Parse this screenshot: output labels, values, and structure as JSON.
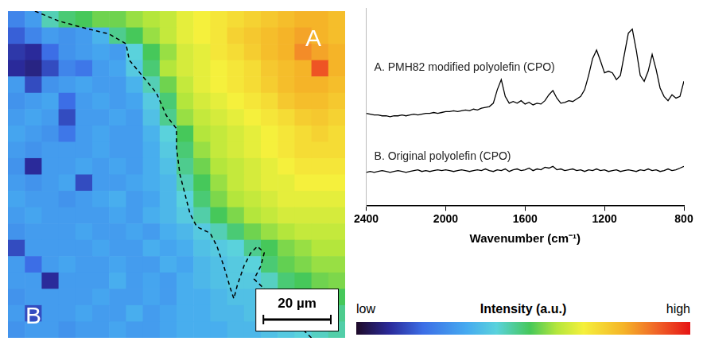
{
  "chart_data": [
    {
      "type": "heatmap",
      "xlim": [
        0,
        100
      ],
      "ylim": [
        100,
        0
      ],
      "tick_labels": false,
      "cells": [
        [
          0.25,
          0.3,
          0.45,
          0.5,
          0.52,
          0.55,
          0.55,
          0.58,
          0.6,
          0.62,
          0.66,
          0.68,
          0.7,
          0.72,
          0.74,
          0.76,
          0.78,
          0.8,
          0.8,
          0.78
        ],
        [
          0.18,
          0.25,
          0.3,
          0.28,
          0.3,
          0.35,
          0.48,
          0.52,
          0.58,
          0.62,
          0.66,
          0.68,
          0.7,
          0.74,
          0.76,
          0.78,
          0.8,
          0.82,
          0.8,
          0.78
        ],
        [
          0.12,
          0.1,
          0.2,
          0.28,
          0.3,
          0.32,
          0.3,
          0.42,
          0.52,
          0.58,
          0.64,
          0.66,
          0.7,
          0.72,
          0.75,
          0.78,
          0.8,
          0.85,
          0.82,
          0.8
        ],
        [
          0.1,
          0.08,
          0.15,
          0.25,
          0.22,
          0.3,
          0.32,
          0.4,
          0.5,
          0.6,
          0.64,
          0.66,
          0.68,
          0.7,
          0.72,
          0.76,
          0.78,
          0.8,
          0.92,
          0.8
        ],
        [
          0.3,
          0.15,
          0.28,
          0.3,
          0.32,
          0.3,
          0.3,
          0.35,
          0.45,
          0.55,
          0.62,
          0.66,
          0.68,
          0.7,
          0.72,
          0.75,
          0.78,
          0.8,
          0.8,
          0.78
        ],
        [
          0.28,
          0.3,
          0.32,
          0.2,
          0.3,
          0.32,
          0.3,
          0.32,
          0.4,
          0.5,
          0.6,
          0.64,
          0.66,
          0.68,
          0.7,
          0.72,
          0.76,
          0.78,
          0.78,
          0.76
        ],
        [
          0.3,
          0.32,
          0.3,
          0.15,
          0.3,
          0.3,
          0.32,
          0.3,
          0.38,
          0.48,
          0.58,
          0.62,
          0.64,
          0.66,
          0.68,
          0.7,
          0.72,
          0.75,
          0.76,
          0.74
        ],
        [
          0.32,
          0.3,
          0.28,
          0.22,
          0.3,
          0.32,
          0.3,
          0.3,
          0.35,
          0.42,
          0.52,
          0.6,
          0.62,
          0.64,
          0.66,
          0.68,
          0.7,
          0.72,
          0.74,
          0.72
        ],
        [
          0.3,
          0.28,
          0.3,
          0.3,
          0.3,
          0.32,
          0.3,
          0.3,
          0.34,
          0.4,
          0.5,
          0.58,
          0.62,
          0.64,
          0.66,
          0.68,
          0.7,
          0.72,
          0.72,
          0.72
        ],
        [
          0.28,
          0.1,
          0.3,
          0.3,
          0.32,
          0.3,
          0.32,
          0.3,
          0.34,
          0.38,
          0.48,
          0.55,
          0.6,
          0.62,
          0.64,
          0.66,
          0.68,
          0.7,
          0.7,
          0.7
        ],
        [
          0.3,
          0.28,
          0.3,
          0.32,
          0.15,
          0.3,
          0.3,
          0.32,
          0.34,
          0.36,
          0.45,
          0.52,
          0.58,
          0.62,
          0.64,
          0.66,
          0.66,
          0.68,
          0.68,
          0.68
        ],
        [
          0.32,
          0.3,
          0.3,
          0.28,
          0.3,
          0.32,
          0.34,
          0.3,
          0.32,
          0.36,
          0.42,
          0.5,
          0.56,
          0.6,
          0.62,
          0.64,
          0.66,
          0.66,
          0.66,
          0.66
        ],
        [
          0.3,
          0.32,
          0.3,
          0.3,
          0.3,
          0.3,
          0.32,
          0.3,
          0.34,
          0.36,
          0.4,
          0.46,
          0.52,
          0.56,
          0.6,
          0.62,
          0.64,
          0.64,
          0.64,
          0.64
        ],
        [
          0.28,
          0.3,
          0.3,
          0.3,
          0.32,
          0.3,
          0.3,
          0.32,
          0.3,
          0.34,
          0.36,
          0.4,
          0.45,
          0.5,
          0.55,
          0.58,
          0.6,
          0.62,
          0.62,
          0.62
        ],
        [
          0.15,
          0.3,
          0.3,
          0.3,
          0.3,
          0.32,
          0.3,
          0.3,
          0.34,
          0.32,
          0.34,
          0.38,
          0.4,
          0.42,
          0.48,
          0.52,
          0.56,
          0.58,
          0.6,
          0.6
        ],
        [
          0.3,
          0.2,
          0.3,
          0.32,
          0.3,
          0.3,
          0.32,
          0.3,
          0.3,
          0.34,
          0.32,
          0.36,
          0.38,
          0.4,
          0.42,
          0.5,
          0.54,
          0.56,
          0.58,
          0.58
        ],
        [
          0.3,
          0.3,
          0.1,
          0.3,
          0.3,
          0.3,
          0.34,
          0.3,
          0.32,
          0.3,
          0.34,
          0.36,
          0.38,
          0.4,
          0.4,
          0.44,
          0.5,
          0.52,
          0.55,
          0.56
        ],
        [
          0.28,
          0.3,
          0.3,
          0.3,
          0.3,
          0.32,
          0.3,
          0.3,
          0.32,
          0.3,
          0.34,
          0.34,
          0.36,
          0.38,
          0.38,
          0.4,
          0.42,
          0.46,
          0.5,
          0.52
        ],
        [
          0.3,
          0.15,
          0.3,
          0.3,
          0.32,
          0.3,
          0.3,
          0.34,
          0.3,
          0.32,
          0.34,
          0.34,
          0.36,
          0.36,
          0.38,
          0.38,
          0.4,
          0.44,
          0.46,
          0.48
        ],
        [
          0.28,
          0.3,
          0.3,
          0.28,
          0.3,
          0.3,
          0.32,
          0.3,
          0.3,
          0.32,
          0.34,
          0.34,
          0.34,
          0.36,
          0.36,
          0.38,
          0.4,
          0.42,
          0.44,
          0.46
        ]
      ],
      "colorbar": {
        "range": [
          0,
          1
        ],
        "title": "Intensity (a.u.)",
        "low_label": "low",
        "high_label": "high"
      },
      "boundary": {
        "line_style": "dashed",
        "color": "#000000",
        "x": [
          8,
          15,
          22,
          30,
          35,
          36,
          40,
          44,
          47,
          50,
          50,
          51,
          53,
          54,
          56,
          60,
          62,
          64,
          66,
          67,
          68,
          70,
          72,
          74,
          76,
          75,
          73,
          76,
          80,
          84,
          88,
          90
        ],
        "y": [
          0,
          3,
          5,
          7,
          10,
          15,
          20,
          25,
          32,
          36,
          42,
          50,
          58,
          62,
          66,
          68,
          72,
          78,
          85,
          88,
          84,
          78,
          74,
          72,
          74,
          78,
          82,
          85,
          88,
          93,
          98,
          100
        ]
      },
      "scale_bar": {
        "length": 20,
        "label": "20 µm"
      },
      "annotations": [
        "A",
        "B"
      ]
    },
    {
      "type": "line",
      "x_label": "Wavenumber (cm⁻¹)",
      "x": [
        2400,
        2380,
        2360,
        2340,
        2320,
        2300,
        2280,
        2260,
        2240,
        2220,
        2200,
        2180,
        2160,
        2140,
        2120,
        2100,
        2080,
        2060,
        2040,
        2020,
        2000,
        1980,
        1960,
        1940,
        1920,
        1900,
        1880,
        1860,
        1840,
        1820,
        1800,
        1780,
        1760,
        1740,
        1720,
        1700,
        1680,
        1660,
        1640,
        1620,
        1600,
        1580,
        1560,
        1540,
        1520,
        1500,
        1480,
        1460,
        1440,
        1420,
        1400,
        1380,
        1360,
        1340,
        1320,
        1300,
        1280,
        1260,
        1240,
        1220,
        1200,
        1180,
        1160,
        1140,
        1120,
        1100,
        1080,
        1060,
        1040,
        1020,
        1000,
        980,
        960,
        940,
        920,
        900,
        880,
        860,
        840,
        820,
        800
      ],
      "series": [
        {
          "name": "A. PMH82 modified polyolefin (CPO)",
          "color": "#000000",
          "values": [
            1.1,
            1.09,
            1.08,
            1.08,
            1.07,
            1.07,
            1.06,
            1.07,
            1.07,
            1.08,
            1.07,
            1.08,
            1.09,
            1.08,
            1.09,
            1.1,
            1.1,
            1.11,
            1.1,
            1.11,
            1.12,
            1.12,
            1.13,
            1.12,
            1.13,
            1.14,
            1.13,
            1.15,
            1.14,
            1.16,
            1.17,
            1.18,
            1.22,
            1.38,
            1.5,
            1.3,
            1.22,
            1.24,
            1.22,
            1.25,
            1.21,
            1.23,
            1.2,
            1.22,
            1.21,
            1.25,
            1.32,
            1.37,
            1.28,
            1.22,
            1.23,
            1.25,
            1.24,
            1.27,
            1.3,
            1.38,
            1.55,
            1.75,
            1.85,
            1.72,
            1.58,
            1.6,
            1.58,
            1.5,
            1.55,
            1.8,
            2.05,
            2.1,
            1.85,
            1.55,
            1.48,
            1.6,
            1.8,
            1.62,
            1.4,
            1.3,
            1.25,
            1.32,
            1.28,
            1.3,
            1.48
          ]
        },
        {
          "name": "B. Original polyolefin (CPO)",
          "color": "#000000",
          "values": [
            0.4,
            0.41,
            0.4,
            0.41,
            0.42,
            0.41,
            0.4,
            0.41,
            0.42,
            0.41,
            0.4,
            0.41,
            0.42,
            0.43,
            0.41,
            0.42,
            0.41,
            0.42,
            0.43,
            0.42,
            0.43,
            0.42,
            0.41,
            0.42,
            0.43,
            0.42,
            0.41,
            0.42,
            0.43,
            0.42,
            0.44,
            0.42,
            0.41,
            0.43,
            0.42,
            0.44,
            0.41,
            0.43,
            0.44,
            0.42,
            0.43,
            0.45,
            0.42,
            0.44,
            0.43,
            0.46,
            0.45,
            0.47,
            0.43,
            0.44,
            0.42,
            0.43,
            0.44,
            0.42,
            0.43,
            0.41,
            0.43,
            0.42,
            0.44,
            0.42,
            0.43,
            0.41,
            0.42,
            0.43,
            0.41,
            0.42,
            0.43,
            0.42,
            0.41,
            0.43,
            0.42,
            0.44,
            0.42,
            0.43,
            0.41,
            0.42,
            0.44,
            0.42,
            0.43,
            0.45,
            0.47
          ]
        }
      ],
      "xlim": [
        2400,
        800
      ],
      "xticks": [
        2400,
        2000,
        1600,
        1200,
        800
      ],
      "ylim": [
        0,
        2.35
      ],
      "grid": false,
      "tick_labels": "x"
    }
  ]
}
